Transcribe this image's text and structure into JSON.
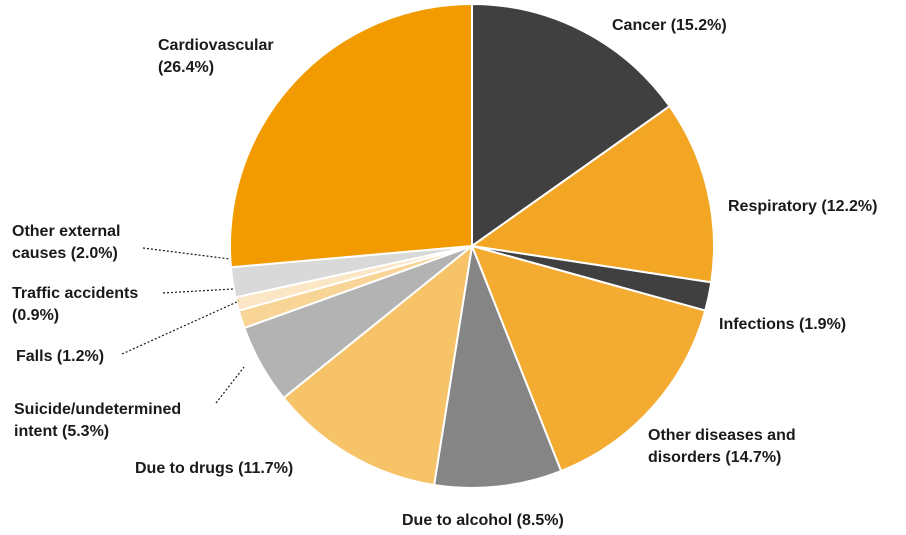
{
  "chart_data": {
    "type": "pie",
    "slices": [
      {
        "label": "Cancer",
        "value": 15.2,
        "text": [
          "Cancer (15.2%)"
        ],
        "color": "#404040"
      },
      {
        "label": "Respiratory",
        "value": 12.2,
        "text": [
          "Respiratory (12.2%)"
        ],
        "color": "#f2a623"
      },
      {
        "label": "Infections",
        "value": 1.9,
        "text": [
          "Infections (1.9%)"
        ],
        "color": "#404040"
      },
      {
        "label": "Other diseases and disorders",
        "value": 14.7,
        "text": [
          "Other diseases and",
          "disorders (14.7%)"
        ],
        "color": "#f4ab32"
      },
      {
        "label": "Due to alcohol",
        "value": 8.5,
        "text": [
          "Due to alcohol (8.5%)"
        ],
        "color": "#858585"
      },
      {
        "label": "Due to drugs",
        "value": 11.7,
        "text": [
          "Due to drugs (11.7%)"
        ],
        "color": "#f6c368"
      },
      {
        "label": "Suicide/undetermined intent",
        "value": 5.3,
        "text": [
          "Suicide/undetermined",
          "intent (5.3%)"
        ],
        "color": "#b3b3b3"
      },
      {
        "label": "Falls",
        "value": 1.2,
        "text": [
          "Falls (1.2%)"
        ],
        "color": "#f9d497"
      },
      {
        "label": "Traffic accidents",
        "value": 0.9,
        "text": [
          "Traffic accidents",
          "(0.9%)"
        ],
        "color": "#fbe7c6"
      },
      {
        "label": "Other external causes",
        "value": 2.0,
        "text": [
          "Other external",
          "causes (2.0%)"
        ],
        "color": "#d9d9d9"
      },
      {
        "label": "Cardiovascular",
        "value": 26.4,
        "text": [
          "Cardiovascular",
          "(26.4%)"
        ],
        "color": "#f19b00"
      }
    ],
    "unit": "%",
    "legend": "none"
  }
}
